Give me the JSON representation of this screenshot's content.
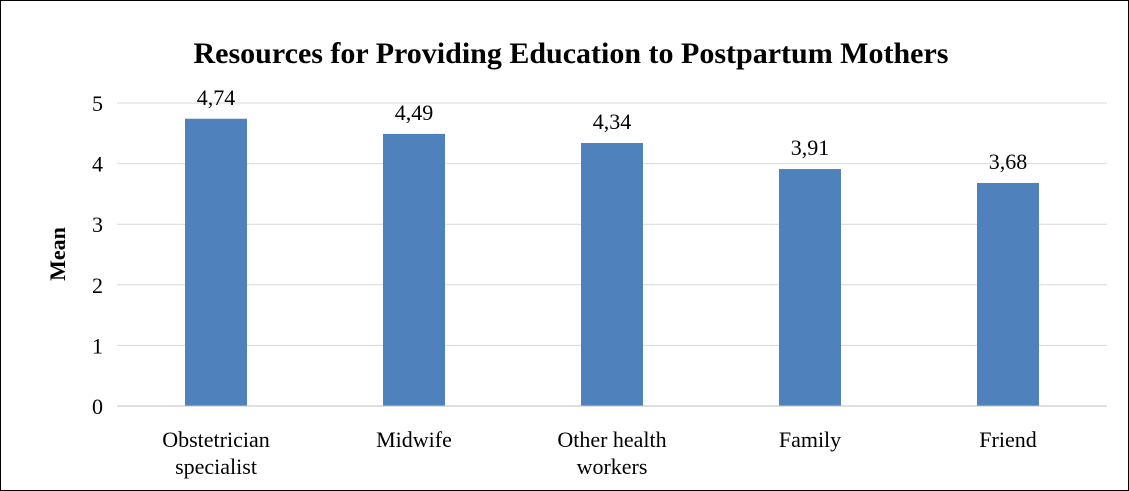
{
  "chart_data": {
    "type": "bar",
    "title": "Resources for Providing Education to Postpartum Mothers",
    "xlabel": "",
    "ylabel": "Mean",
    "categories": [
      [
        "Obstetrician",
        "specialist"
      ],
      [
        "Midwife"
      ],
      [
        "Other health",
        "workers"
      ],
      [
        "Family"
      ],
      [
        "Friend"
      ]
    ],
    "values": [
      4.74,
      4.49,
      4.34,
      3.91,
      3.68
    ],
    "data_labels": [
      "4,74",
      "4,49",
      "4,34",
      "3,91",
      "3,68"
    ],
    "y_ticks": [
      "0",
      "1",
      "2",
      "3",
      "4",
      "5"
    ],
    "ylim": [
      0,
      5
    ],
    "grid": true,
    "legend": "none",
    "colors": {
      "bar": "#4F81BD",
      "grid": "#D9D9D9",
      "axis": "#BFBFBF",
      "text": "#000000"
    }
  }
}
